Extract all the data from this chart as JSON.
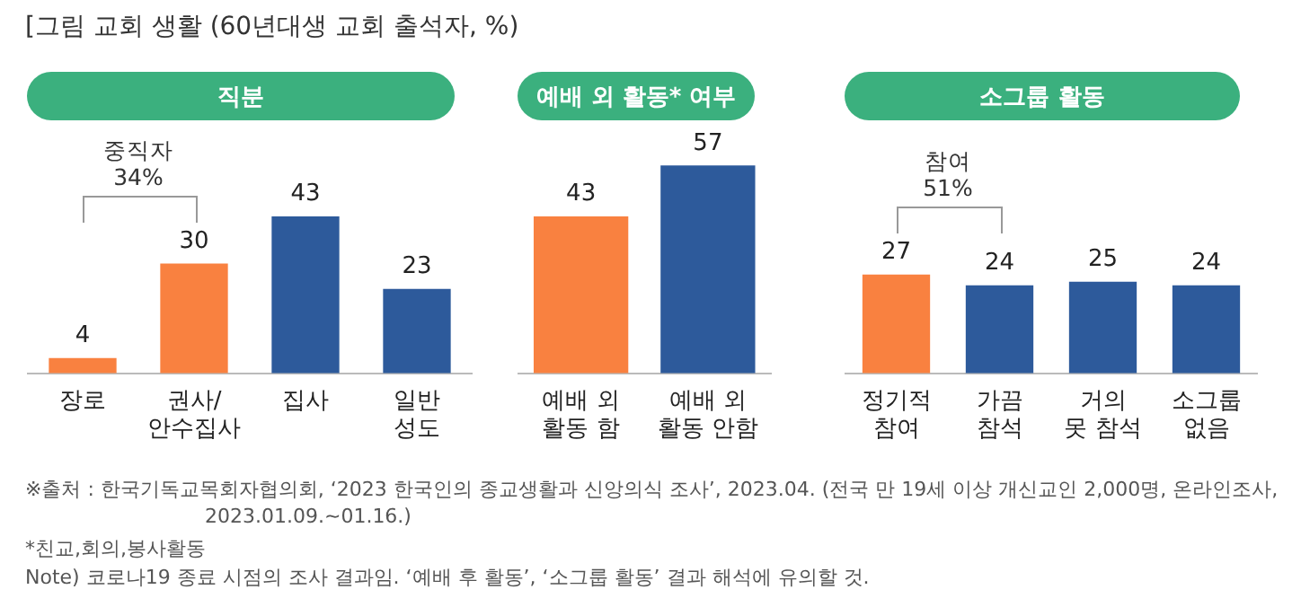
{
  "chart_data": [
    {
      "type": "bar",
      "title": "직분",
      "categories": [
        "장로",
        "권사/\n안수집사",
        "집사",
        "일반\n성도"
      ],
      "values": [
        4,
        30,
        43,
        23
      ],
      "colors": [
        "#f98140",
        "#f98140",
        "#2d5a9b",
        "#2d5a9b"
      ],
      "tick_labels": "x",
      "data_labels": true,
      "grid": false,
      "legend": false,
      "annotations": [
        "[그림 교회 생활 (60년대생 교회 출석자, %)",
        "중직자\n34%",
        "※출처 : 한국기독교목회자협의회, ‘2023 한국인의 종교생활과 신앙의식 조사’, 2023.04. (전국 만 19세 이상 개신교인 2,000명, 온라인조사, 2023.01.09.~01.16.)",
        "*친교,회의,봉사활동",
        "Note) 코로나19 종료 시점의 조사 결과임. ‘예배 후 활동’, ‘소그룹 활동’ 결과 해석에 유의할 것."
      ]
    },
    {
      "type": "bar",
      "title": "예배 외 활동* 여부",
      "categories": [
        "예배 외\n활동 함",
        "예배 외\n활동 안함"
      ],
      "values": [
        43,
        57
      ],
      "colors": [
        "#f98140",
        "#2d5a9b"
      ],
      "tick_labels": "x",
      "data_labels": true,
      "grid": false,
      "legend": false
    },
    {
      "type": "bar",
      "title": "소그룹 활동",
      "categories": [
        "정기적\n참여",
        "가끔\n참석",
        "거의\n못 참석",
        "소그룹\n없음"
      ],
      "values": [
        27,
        24,
        25,
        24
      ],
      "colors": [
        "#f98140",
        "#2d5a9b",
        "#2d5a9b",
        "#2d5a9b"
      ],
      "tick_labels": "x",
      "data_labels": true,
      "grid": false,
      "legend": false,
      "annotations": [
        "참여\n51%"
      ]
    }
  ]
}
